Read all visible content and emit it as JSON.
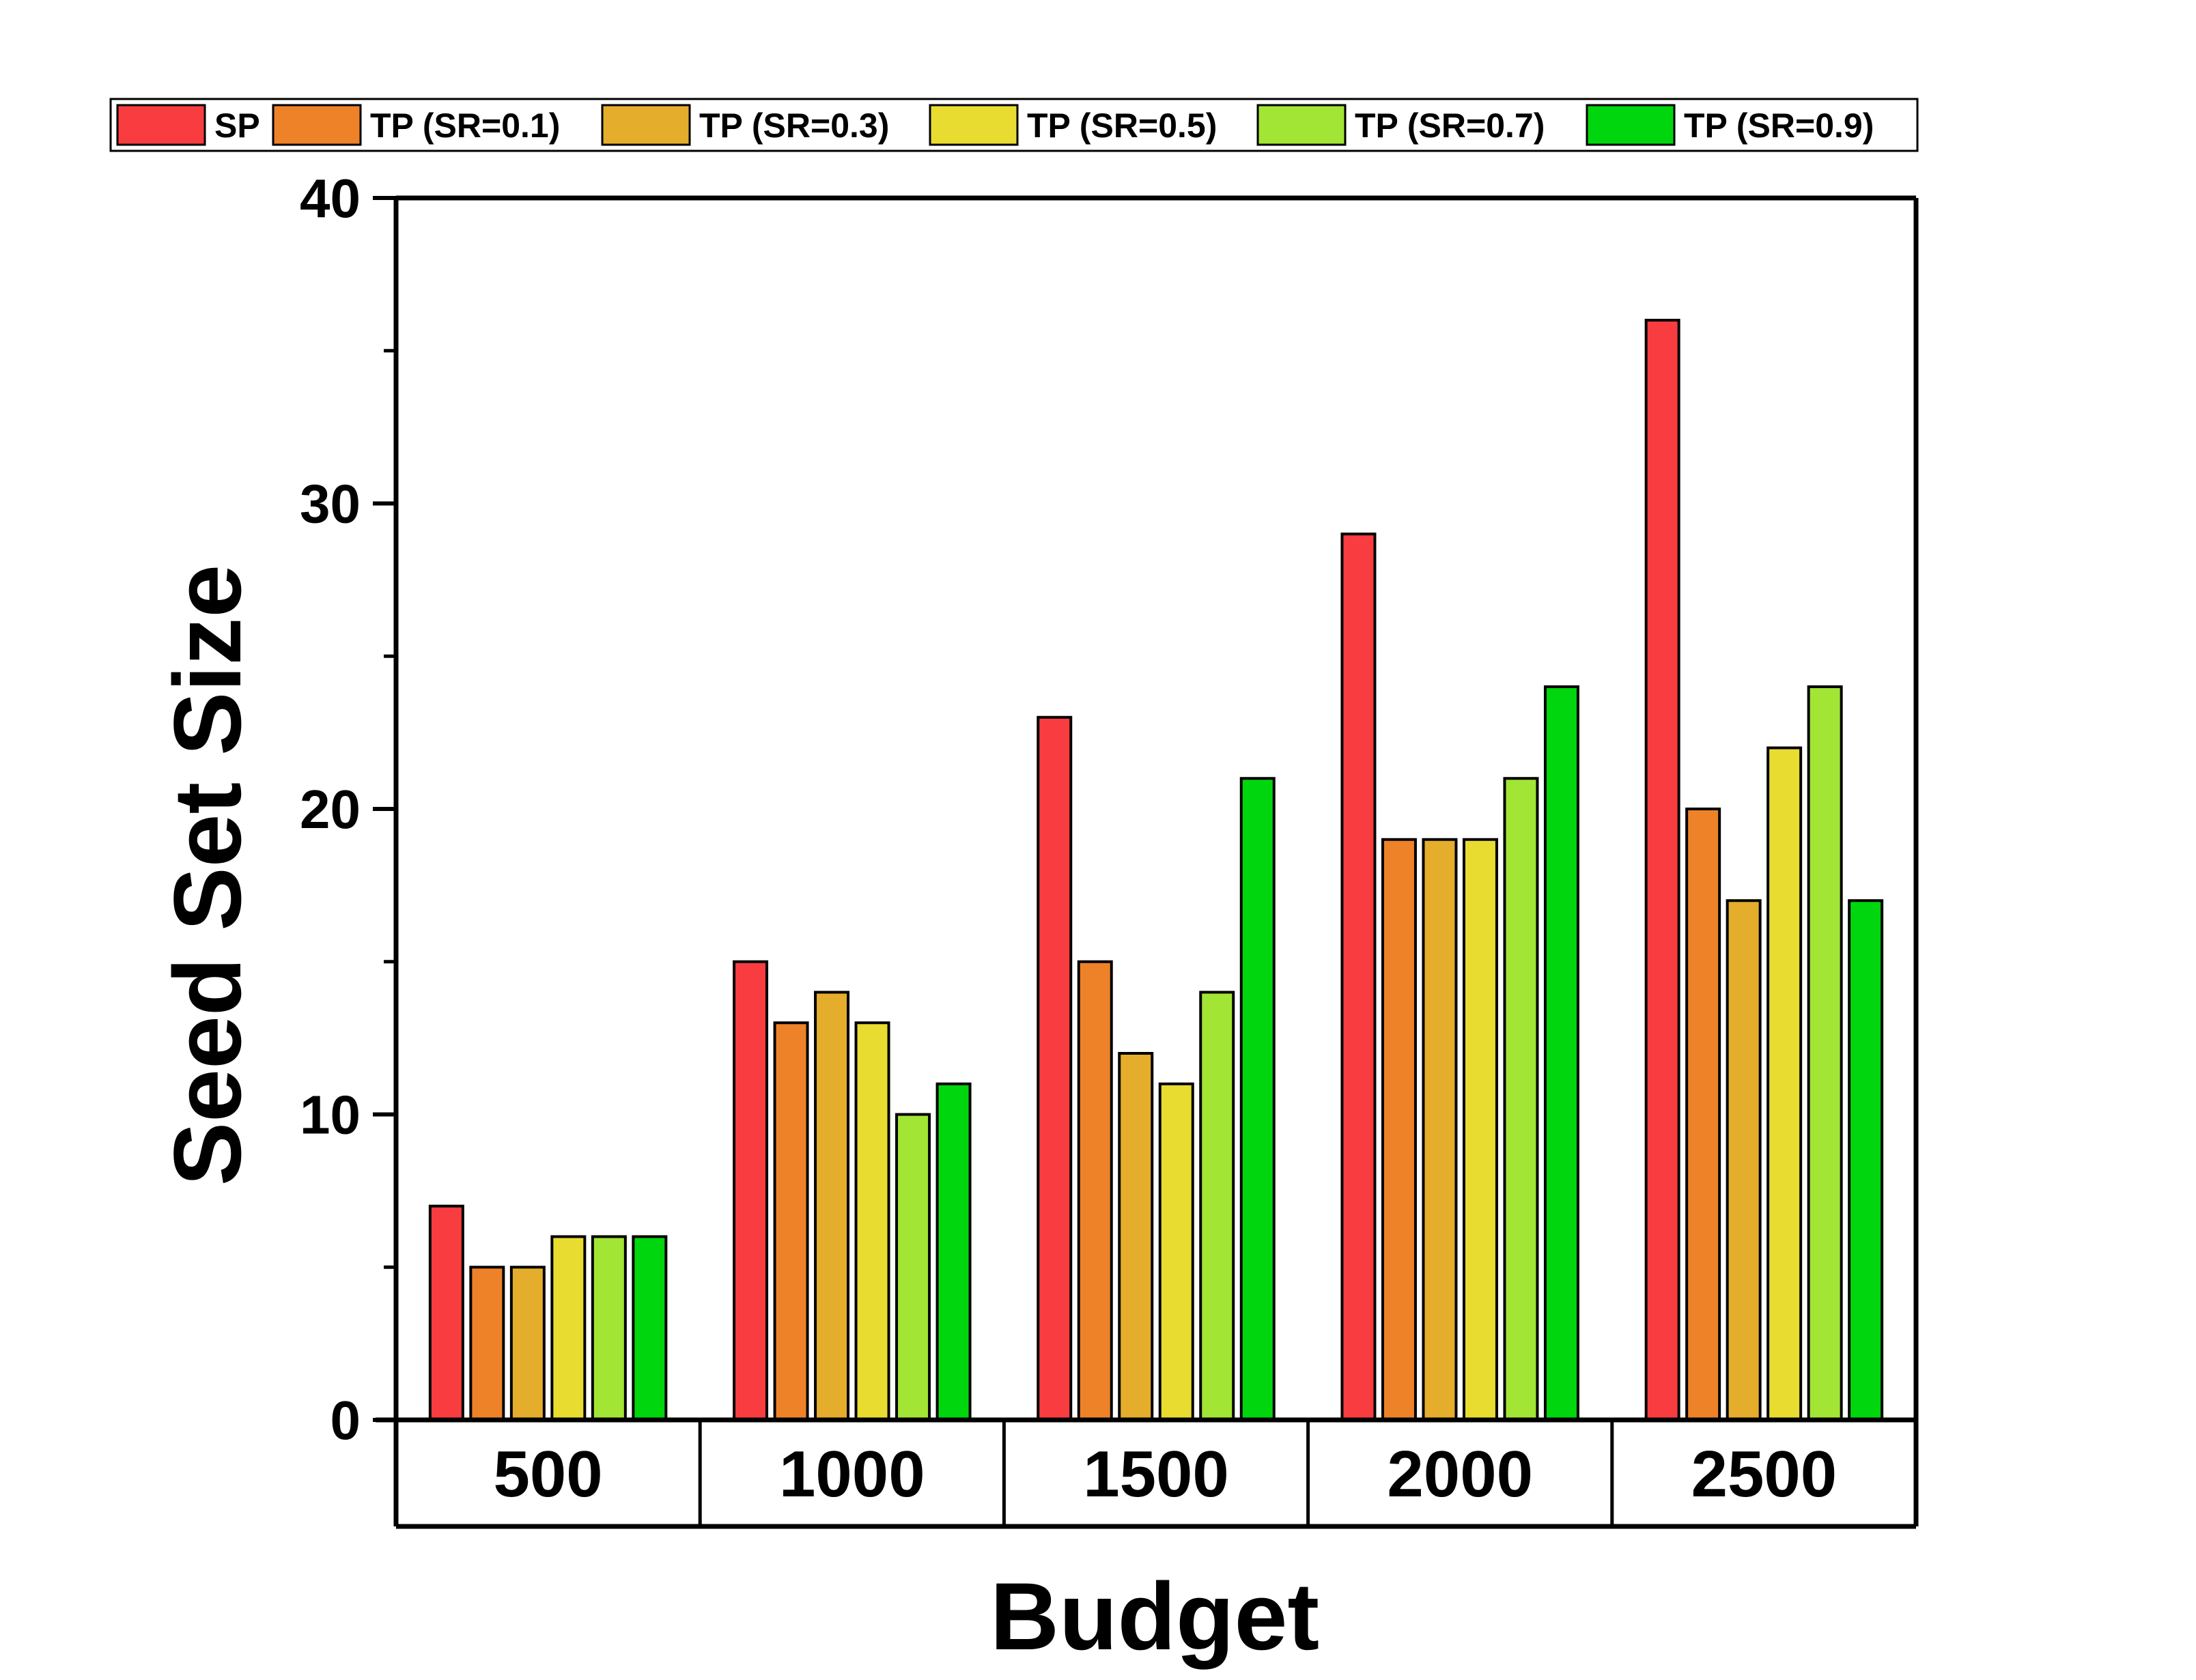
{
  "chart_data": {
    "type": "bar",
    "xlabel": "Budget",
    "ylabel": "Seed Set Size",
    "ylim": [
      0,
      40
    ],
    "yticks": [
      0,
      10,
      20,
      30,
      40
    ],
    "categories": [
      "500",
      "1000",
      "1500",
      "2000",
      "2500"
    ],
    "legend_position": "top",
    "grid": false,
    "series": [
      {
        "name": "SP",
        "color": "#f83c3f",
        "values": [
          7,
          15,
          23,
          29,
          36
        ]
      },
      {
        "name": "TP (SR=0.1)",
        "color": "#ee8228",
        "values": [
          5,
          13,
          15,
          19,
          20
        ]
      },
      {
        "name": "TP (SR=0.3)",
        "color": "#e4ad2c",
        "values": [
          5,
          14,
          12,
          19,
          17
        ]
      },
      {
        "name": "TP (SR=0.5)",
        "color": "#e8dc31",
        "values": [
          6,
          13,
          11,
          19,
          22
        ]
      },
      {
        "name": "TP (SR=0.7)",
        "color": "#a2e535",
        "values": [
          6,
          10,
          14,
          21,
          24
        ]
      },
      {
        "name": "TP (SR=0.9)",
        "color": "#00d60d",
        "values": [
          6,
          11,
          21,
          24,
          17
        ]
      }
    ]
  }
}
